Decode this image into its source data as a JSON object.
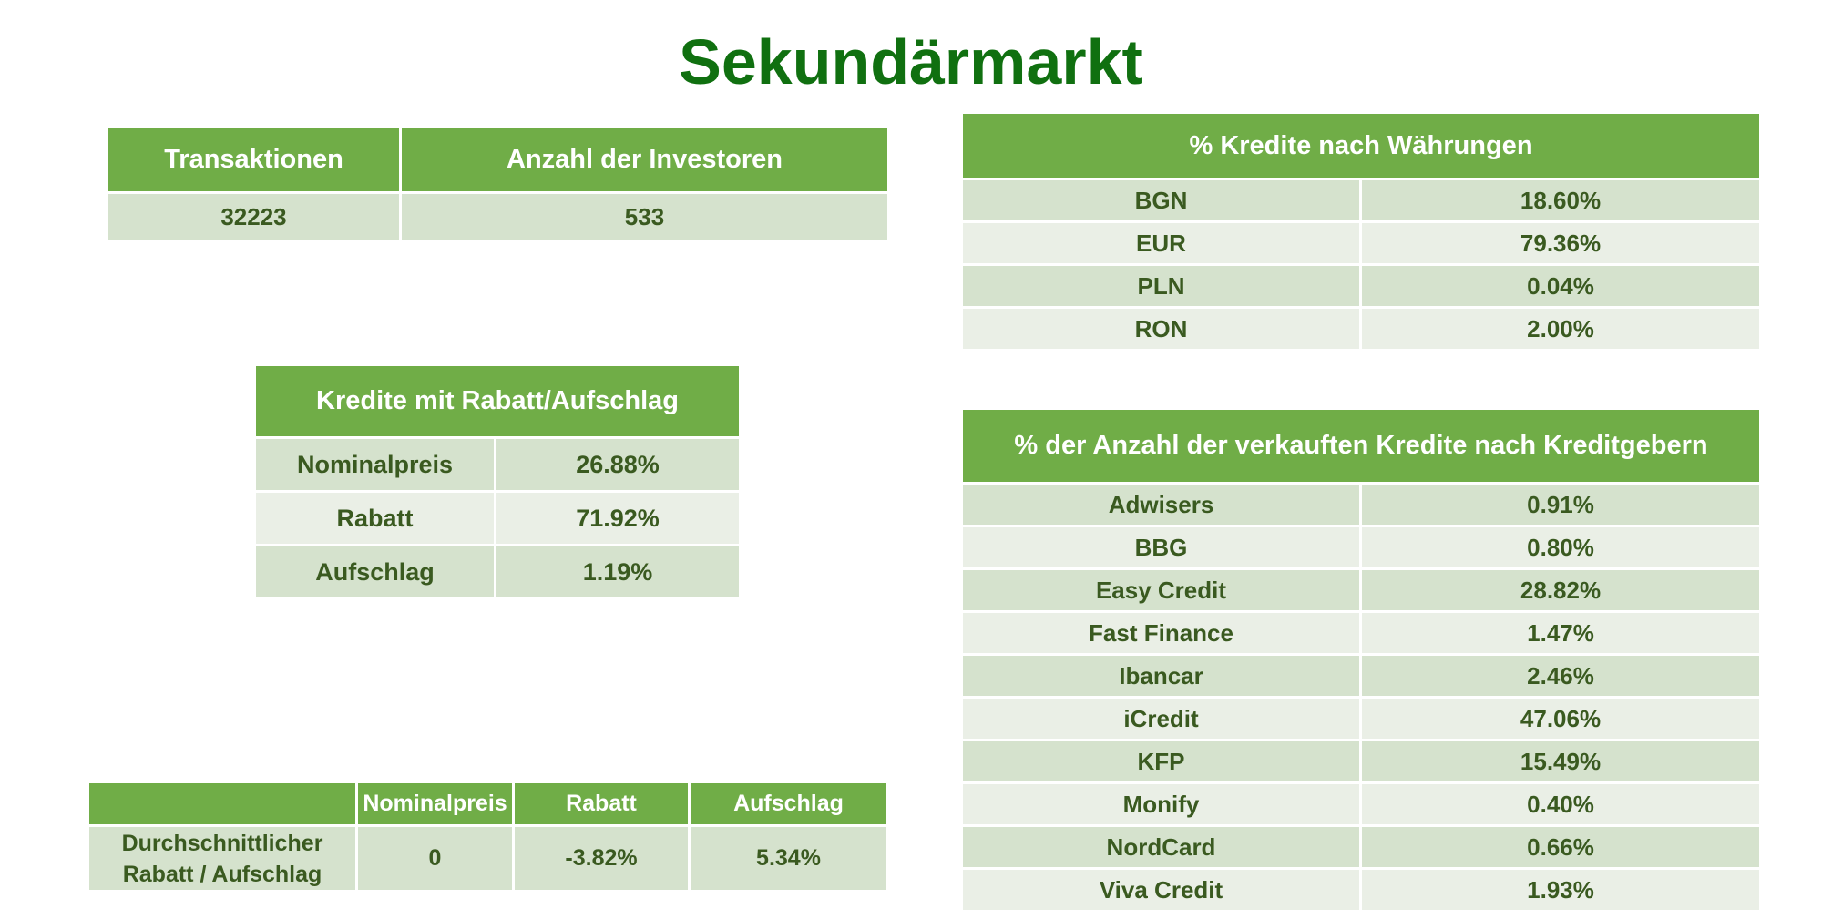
{
  "title": "Sekundärmarkt",
  "summary": {
    "headers": [
      "Transaktionen",
      "Anzahl der Investoren"
    ],
    "values": [
      "32223",
      "533"
    ]
  },
  "discount": {
    "header": "Kredite mit Rabatt/Aufschlag",
    "rows": [
      {
        "label": "Nominalpreis",
        "value": "26.88%"
      },
      {
        "label": "Rabatt",
        "value": "71.92%"
      },
      {
        "label": "Aufschlag",
        "value": "1.19%"
      }
    ]
  },
  "average": {
    "headers": [
      "",
      "Nominalpreis",
      "Rabatt",
      "Aufschlag"
    ],
    "row_label": "Durchschnittlicher Rabatt / Aufschlag",
    "values": [
      "0",
      "-3.82%",
      "5.34%"
    ]
  },
  "currency": {
    "header": "% Kredite nach Währungen",
    "rows": [
      {
        "label": "BGN",
        "value": "18.60%"
      },
      {
        "label": "EUR",
        "value": "79.36%"
      },
      {
        "label": "PLN",
        "value": "0.04%"
      },
      {
        "label": "RON",
        "value": "2.00%"
      }
    ]
  },
  "lenders": {
    "header": "% der Anzahl der verkauften Kredite nach Kreditgebern",
    "rows": [
      {
        "label": "Adwisers",
        "value": "0.91%"
      },
      {
        "label": "BBG",
        "value": "0.80%"
      },
      {
        "label": "Easy Credit",
        "value": "28.82%"
      },
      {
        "label": "Fast Finance",
        "value": "1.47%"
      },
      {
        "label": "Ibancar",
        "value": "2.46%"
      },
      {
        "label": "iCredit",
        "value": "47.06%"
      },
      {
        "label": "KFP",
        "value": "15.49%"
      },
      {
        "label": "Monify",
        "value": "0.40%"
      },
      {
        "label": "NordCard",
        "value": "0.66%"
      },
      {
        "label": "Viva Credit",
        "value": "1.93%"
      }
    ]
  },
  "colors": {
    "title": "#107010",
    "header_bg": "#70ad47",
    "row_dark": "#d5e2cd",
    "row_light": "#eaefe6",
    "cell_text": "#3a5a20"
  }
}
